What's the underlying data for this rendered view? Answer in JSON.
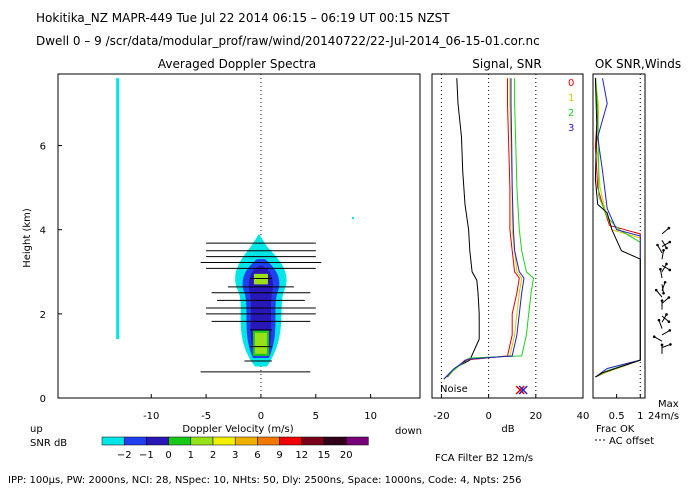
{
  "header": {
    "line1": "Hokitika_NZ   MAPR-449   Tue Jul 22 2014 06:15 – 06:19 UT 00:15 NZST",
    "line2": "Dwell   0  –   9    /scr/data/modular_prof/raw/wind/20140722/22-Jul-2014_06-15-01.cor.nc"
  },
  "footer": {
    "params": "IPP: 100µs,  PW: 2000ns,  NCI:  28,  NSpec: 10,  NHts: 50,  Dly: 2500ns,  Space: 1000ns,  Code: 4,  Npts: 256",
    "filter": "FCA Filter B2 12m/s"
  },
  "colors": {
    "snr_scale": [
      "#00e5e5",
      "#2040f0",
      "#2818b8",
      "#18c818",
      "#98e018",
      "#f0f000",
      "#f0b000",
      "#f07800",
      "#f00000",
      "#780018",
      "#300018",
      "#780078"
    ]
  },
  "chart_data": [
    {
      "type": "heatmap",
      "title": "Averaged Doppler Spectra",
      "xlabel": "Doppler Velocity (m/s)",
      "ylabel": "Height (km)",
      "xlim": [
        -18.5,
        14.5
      ],
      "ylim": [
        0,
        7.7
      ],
      "xticks": [
        -10,
        -5,
        0,
        5,
        10
      ],
      "yticks": [
        0,
        2,
        4,
        6
      ],
      "x_left_label": "up",
      "x_right_label": "down",
      "colorbar_label": "SNR dB",
      "colorbar_ticks": [
        "−2",
        "−1",
        "0",
        "1",
        "2",
        "3",
        "6",
        "9",
        "12",
        "15",
        "20"
      ],
      "spread_bars": [
        {
          "height": 0.62,
          "left": -5.5,
          "right": 4.5
        },
        {
          "height": 0.88,
          "left": -1.5,
          "right": 1.0
        },
        {
          "height": 1.22,
          "left": -1.0,
          "right": 1.0
        },
        {
          "height": 1.62,
          "left": -1.0,
          "right": 1.0
        },
        {
          "height": 1.82,
          "left": -4.5,
          "right": 4.5
        },
        {
          "height": 2.0,
          "left": -5.0,
          "right": 5.0
        },
        {
          "height": 2.14,
          "left": -5.0,
          "right": 5.0
        },
        {
          "height": 2.32,
          "left": -4.0,
          "right": 4.0
        },
        {
          "height": 2.5,
          "left": -4.5,
          "right": 4.5
        },
        {
          "height": 2.64,
          "left": -3.0,
          "right": 3.0
        },
        {
          "height": 2.84,
          "left": -1.0,
          "right": 1.0
        },
        {
          "height": 3.08,
          "left": -5.0,
          "right": 5.0
        },
        {
          "height": 3.22,
          "left": -5.5,
          "right": 5.5
        },
        {
          "height": 3.36,
          "left": -5.0,
          "right": 5.0
        },
        {
          "height": 3.5,
          "left": -5.0,
          "right": 5.0
        },
        {
          "height": 3.68,
          "left": -5.0,
          "right": 5.0
        }
      ]
    },
    {
      "type": "line",
      "title": "Signal, SNR",
      "xlabel": "dB",
      "xlim": [
        -24,
        40
      ],
      "ylim": [
        0,
        7.7
      ],
      "xticks": [
        -20,
        0,
        20,
        40
      ],
      "noise_label": "Noise",
      "legend": [
        "0",
        "1",
        "2",
        "3"
      ],
      "series": [
        {
          "name": "signal",
          "points": [
            [
              -17.5,
              0.5
            ],
            [
              -14,
              0.72
            ],
            [
              -8,
              0.9
            ],
            [
              -4,
              1.4
            ],
            [
              -4,
              2.0
            ],
            [
              -4.5,
              2.5
            ],
            [
              -5,
              2.8
            ],
            [
              -7,
              3.0
            ],
            [
              -8,
              3.5
            ],
            [
              -8.5,
              4.0
            ],
            [
              -10,
              4.6
            ],
            [
              -11,
              5.4
            ],
            [
              -11.5,
              6.2
            ],
            [
              -13,
              7.0
            ],
            [
              -13.5,
              7.6
            ]
          ]
        },
        {
          "name": "0",
          "points": [
            [
              -19,
              0.45
            ],
            [
              -16,
              0.6
            ],
            [
              -10,
              0.9
            ],
            [
              8,
              1.0
            ],
            [
              10,
              1.5
            ],
            [
              10,
              2.0
            ],
            [
              12,
              2.5
            ],
            [
              13,
              2.85
            ],
            [
              11,
              3.0
            ],
            [
              10,
              3.5
            ],
            [
              9,
              4.0
            ],
            [
              9,
              5.0
            ],
            [
              8.5,
              6.0
            ],
            [
              8,
              7.0
            ],
            [
              8,
              7.6
            ]
          ]
        },
        {
          "name": "1",
          "points": [
            [
              -19,
              0.45
            ],
            [
              -15,
              0.65
            ],
            [
              -9,
              0.92
            ],
            [
              9,
              1.0
            ],
            [
              11,
              1.5
            ],
            [
              12,
              2.0
            ],
            [
              13,
              2.5
            ],
            [
              14,
              2.85
            ],
            [
              12,
              3.0
            ],
            [
              11,
              3.5
            ],
            [
              10,
              4.0
            ],
            [
              10,
              5.0
            ],
            [
              9.5,
              6.0
            ],
            [
              9,
              7.0
            ],
            [
              9,
              7.6
            ]
          ]
        },
        {
          "name": "2",
          "points": [
            [
              -19,
              0.45
            ],
            [
              -14,
              0.7
            ],
            [
              -8,
              0.95
            ],
            [
              14,
              1.0
            ],
            [
              16,
              1.5
            ],
            [
              17,
              2.0
            ],
            [
              18,
              2.5
            ],
            [
              19,
              2.85
            ],
            [
              16,
              3.0
            ],
            [
              14,
              3.5
            ],
            [
              13,
              4.0
            ],
            [
              12,
              5.0
            ],
            [
              11.5,
              6.0
            ],
            [
              11,
              7.0
            ],
            [
              11,
              7.6
            ]
          ]
        },
        {
          "name": "3",
          "points": [
            [
              -19,
              0.45
            ],
            [
              -15,
              0.68
            ],
            [
              -9,
              0.92
            ],
            [
              10,
              1.0
            ],
            [
              12,
              1.5
            ],
            [
              13,
              2.0
            ],
            [
              14,
              2.5
            ],
            [
              15,
              2.85
            ],
            [
              13,
              3.0
            ],
            [
              11,
              3.5
            ],
            [
              10.5,
              4.0
            ],
            [
              10,
              5.0
            ],
            [
              9.8,
              6.0
            ],
            [
              9.5,
              7.0
            ],
            [
              9.5,
              7.6
            ]
          ]
        }
      ]
    },
    {
      "type": "line",
      "title": "OK SNR,Winds",
      "xlabel": "Frac OK",
      "xlim": [
        0,
        1.1
      ],
      "ylim": [
        0,
        7.7
      ],
      "xticks": [
        0.5,
        1
      ],
      "xtick_labels": [
        "0.5",
        "1"
      ],
      "note": "AC offset",
      "max_label": "Max",
      "max_value": "24m/s",
      "series": [
        {
          "name": "0",
          "points": [
            [
              0.05,
              7.6
            ],
            [
              0.1,
              6.8
            ],
            [
              0.05,
              6.0
            ],
            [
              0.1,
              5.0
            ],
            [
              0.2,
              4.6
            ],
            [
              0.35,
              4.1
            ],
            [
              1,
              3.9
            ],
            [
              1,
              0.9
            ],
            [
              0.25,
              0.6
            ],
            [
              0.05,
              0.5
            ]
          ]
        },
        {
          "name": "1",
          "points": [
            [
              0.05,
              7.6
            ],
            [
              0.12,
              6.9
            ],
            [
              0.08,
              6.0
            ],
            [
              0.15,
              5.0
            ],
            [
              0.25,
              4.5
            ],
            [
              0.4,
              4.0
            ],
            [
              1,
              3.8
            ],
            [
              1,
              0.9
            ],
            [
              0.25,
              0.6
            ],
            [
              0.05,
              0.5
            ]
          ]
        },
        {
          "name": "2",
          "points": [
            [
              0.06,
              7.6
            ],
            [
              0.1,
              6.8
            ],
            [
              0.12,
              6.0
            ],
            [
              0.12,
              4.8
            ],
            [
              0.3,
              4.3
            ],
            [
              0.55,
              4.0
            ],
            [
              1,
              3.7
            ],
            [
              1,
              0.9
            ],
            [
              0.3,
              0.65
            ],
            [
              0.05,
              0.5
            ]
          ]
        },
        {
          "name": "3",
          "points": [
            [
              0.2,
              7.6
            ],
            [
              0.3,
              7.0
            ],
            [
              0.1,
              6.2
            ],
            [
              0.2,
              5.4
            ],
            [
              0.3,
              4.5
            ],
            [
              0.5,
              4.0
            ],
            [
              1,
              3.85
            ],
            [
              1,
              0.9
            ],
            [
              0.3,
              0.7
            ],
            [
              0.05,
              0.5
            ]
          ]
        },
        {
          "name": "black",
          "points": [
            [
              0.05,
              7.6
            ],
            [
              0.08,
              6.5
            ],
            [
              0.05,
              5.2
            ],
            [
              0.1,
              4.6
            ],
            [
              0.3,
              4.4
            ],
            [
              0.4,
              4.0
            ],
            [
              0.6,
              3.5
            ],
            [
              1,
              3.3
            ],
            [
              1,
              0.9
            ],
            [
              0.2,
              0.6
            ],
            [
              0.05,
              0.5
            ]
          ]
        }
      ]
    }
  ]
}
